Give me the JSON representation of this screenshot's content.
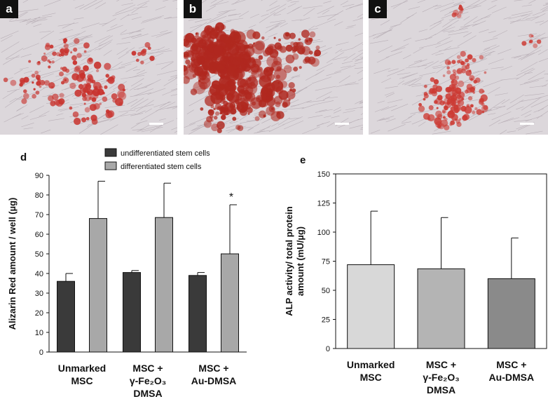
{
  "photos": [
    {
      "label": "a",
      "stain_color": "#c8322d"
    },
    {
      "label": "b",
      "stain_color": "#b0281f"
    },
    {
      "label": "c",
      "stain_color": "#cc3a33"
    }
  ],
  "chart_data": [
    {
      "panel": "d",
      "type": "bar",
      "ylabel": "Alizarin Red amount / well  (µg)",
      "ylim": [
        0,
        90
      ],
      "yticks": [
        "0",
        "10",
        "20",
        "30",
        "40",
        "50",
        "60",
        "70",
        "80",
        "90"
      ],
      "categories": [
        [
          "Unmarked",
          "MSC"
        ],
        [
          "MSC +",
          "γ-Fe₂O₃",
          "DMSA"
        ],
        [
          "MSC +",
          "Au-DMSA"
        ]
      ],
      "series": [
        {
          "name": "undifferentiated stem cells",
          "color": "#3a3a3a",
          "values": [
            36,
            40.5,
            39
          ],
          "errors": [
            4,
            1,
            1.5
          ]
        },
        {
          "name": "differentiated stem cells",
          "color": "#a8a8a8",
          "values": [
            68,
            68.5,
            50
          ],
          "errors": [
            19,
            17.5,
            25
          ]
        }
      ],
      "annotations": [
        {
          "category_index": 2,
          "series_index": 1,
          "text": "*"
        }
      ],
      "legend": "top"
    },
    {
      "panel": "e",
      "type": "bar",
      "ylabel": "ALP activity/ total protein amount (mU/µg)",
      "ylim": [
        0,
        150
      ],
      "yticks": [
        "0",
        "25",
        "50",
        "75",
        "100",
        "125",
        "150"
      ],
      "categories": [
        [
          "Unmarked",
          "MSC"
        ],
        [
          "MSC +",
          "γ-Fe₂O₃",
          "DMSA"
        ],
        [
          "MSC +",
          "Au-DMSA"
        ]
      ],
      "series": [
        {
          "values": [
            72,
            68.5,
            60
          ],
          "errors": [
            46,
            44,
            35
          ],
          "colors": [
            "#d8d8d8",
            "#b4b4b4",
            "#8a8a8a"
          ]
        }
      ]
    }
  ]
}
